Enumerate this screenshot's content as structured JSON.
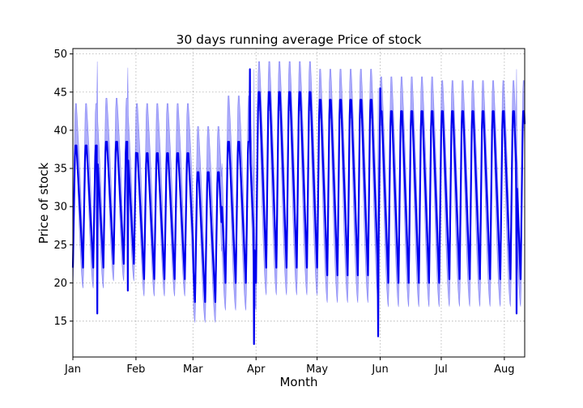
{
  "chart_data": {
    "type": "line",
    "title": "30 days running average Price of stock",
    "xlabel": "Month",
    "ylabel": "Price of stock",
    "x_range": [
      "2021-01-01",
      "2021-08-11"
    ],
    "x_ticks": [
      {
        "date": "2021-01-01",
        "label": "Jan"
      },
      {
        "date": "2021-02-01",
        "label": "Feb"
      },
      {
        "date": "2021-03-01",
        "label": "Mar"
      },
      {
        "date": "2021-04-01",
        "label": "Apr"
      },
      {
        "date": "2021-05-01",
        "label": "May"
      },
      {
        "date": "2021-06-01",
        "label": "Jun"
      },
      {
        "date": "2021-07-01",
        "label": "Jul"
      },
      {
        "date": "2021-08-01",
        "label": "Aug"
      }
    ],
    "ylim": [
      10.3,
      50.7
    ],
    "y_ticks": [
      15,
      20,
      25,
      30,
      35,
      40,
      45,
      50
    ],
    "grid": true,
    "grid_style": "dotted",
    "line_color": "#0000ee",
    "band_color": "#0000ee",
    "band_opacity": 0.32,
    "series": [
      {
        "name": "",
        "band": "min-max range",
        "cycle_days": 5,
        "segments": [
          {
            "start": "2021-01-01",
            "end": "2021-01-16",
            "mean_high": 38,
            "mean_low": 22,
            "band_high": 43.5,
            "band_low": 19
          },
          {
            "start": "2021-01-16",
            "end": "2021-02-01",
            "mean_high": 38.5,
            "mean_low": 22.5,
            "band_high": 44.2,
            "band_low": 20
          },
          {
            "start": "2021-02-01",
            "end": "2021-03-01",
            "mean_high": 37,
            "mean_low": 20.5,
            "band_high": 43.5,
            "band_low": 18
          },
          {
            "start": "2021-03-01",
            "end": "2021-03-15",
            "mean_high": 34.5,
            "mean_low": 17.5,
            "band_high": 40.5,
            "band_low": 14.5
          },
          {
            "start": "2021-03-15",
            "end": "2021-04-01",
            "mean_high": 38.5,
            "mean_low": 20,
            "band_high": 44.5,
            "band_low": 16
          },
          {
            "start": "2021-04-01",
            "end": "2021-05-01",
            "mean_high": 45,
            "mean_low": 22,
            "band_high": 49,
            "band_low": 18
          },
          {
            "start": "2021-05-01",
            "end": "2021-06-01",
            "mean_high": 44,
            "mean_low": 21,
            "band_high": 48,
            "band_low": 17
          },
          {
            "start": "2021-06-01",
            "end": "2021-07-01",
            "mean_high": 42.5,
            "mean_low": 20,
            "band_high": 47,
            "band_low": 16.5
          },
          {
            "start": "2021-07-01",
            "end": "2021-08-11",
            "mean_high": 42.5,
            "mean_low": 20.5,
            "band_high": 46.5,
            "band_low": 16.5
          }
        ],
        "extremes": [
          {
            "date": "2021-01-13",
            "mean": 16,
            "band_high": 49
          },
          {
            "date": "2021-01-28",
            "mean": 19,
            "band_high": 48.2
          },
          {
            "date": "2021-03-31",
            "mean": 12,
            "band_high": 48
          },
          {
            "date": "2021-03-29",
            "mean": 48,
            "band_high": 48
          },
          {
            "date": "2021-05-31",
            "mean": 13,
            "band_high": 45.5
          },
          {
            "date": "2021-06-01",
            "mean": 45.5,
            "band_high": 45.5
          },
          {
            "date": "2021-08-07",
            "mean": 16,
            "band_high": 48
          }
        ]
      }
    ]
  }
}
